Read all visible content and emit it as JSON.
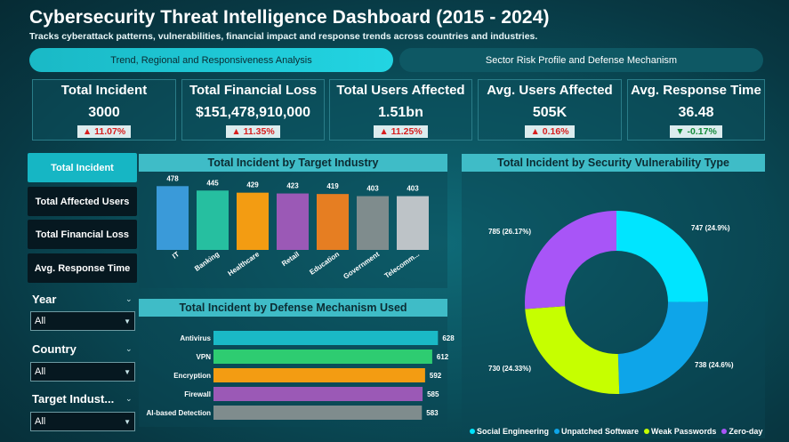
{
  "header": {
    "title": "Cybersecurity Threat Intelligence Dashboard (2015 - 2024)",
    "subtitle": "Tracks cyberattack patterns, vulnerabilities, financial impact and response trends across countries and industries."
  },
  "tabs": [
    {
      "label": "Trend, Regional and Responsiveness Analysis",
      "active": true
    },
    {
      "label": "Sector Risk Profile and Defense Mechanism",
      "active": false
    }
  ],
  "kpis": [
    {
      "label": "Total Incident",
      "value": "3000",
      "change": "▲ 11.07%",
      "direction": "up"
    },
    {
      "label": "Total Financial Loss",
      "value": "$151,478,910,000",
      "change": "▲ 11.35%",
      "direction": "up"
    },
    {
      "label": "Total Users Affected",
      "value": "1.51bn",
      "change": "▲ 11.25%",
      "direction": "up"
    },
    {
      "label": "Avg. Users Affected",
      "value": "505K",
      "change": "▲ 0.16%",
      "direction": "up"
    },
    {
      "label": "Avg. Response Time",
      "value": "36.48",
      "change": "▼ -0.17%",
      "direction": "down"
    }
  ],
  "sidebar": {
    "buttons": [
      {
        "label": "Total Incident",
        "active": true
      },
      {
        "label": "Total Affected Users",
        "active": false
      },
      {
        "label": "Total Financial Loss",
        "active": false
      },
      {
        "label": "Avg. Response Time",
        "active": false
      }
    ],
    "filters": [
      {
        "label": "Year",
        "value": "All"
      },
      {
        "label": "Country",
        "value": "All"
      },
      {
        "label": "Target Indust...",
        "value": "All"
      }
    ]
  },
  "chart_data": [
    {
      "type": "bar",
      "title": "Total Incident by Target Industry",
      "categories": [
        "IT",
        "Banking",
        "Healthcare",
        "Retail",
        "Education",
        "Government",
        "Telecomm..."
      ],
      "values": [
        478,
        445,
        429,
        423,
        419,
        403,
        403
      ],
      "colors": [
        "#3a9ad9",
        "#26bfa0",
        "#f39c12",
        "#9b59b6",
        "#e67e22",
        "#7f8c8d",
        "#bdc3c7"
      ],
      "ylim": [
        0,
        500
      ]
    },
    {
      "type": "bar",
      "orientation": "horizontal",
      "title": "Total Incident by Defense Mechanism Used",
      "categories": [
        "Antivirus",
        "VPN",
        "Encryption",
        "Firewall",
        "AI-based Detection"
      ],
      "values": [
        628,
        612,
        592,
        585,
        583
      ],
      "colors": [
        "#1ab9c6",
        "#2ecc71",
        "#f39c12",
        "#9b59b6",
        "#7f8c8d"
      ],
      "xlim": [
        0,
        660
      ]
    },
    {
      "type": "pie",
      "variant": "donut",
      "title": "Total Incident by Security Vulnerability Type",
      "categories": [
        "Social Engineering",
        "Unpatched Software",
        "Weak Passwords",
        "Zero-day"
      ],
      "values": [
        747,
        738,
        730,
        785
      ],
      "labels": [
        "747 (24.9%)",
        "738 (24.6%)",
        "730 (24.33%)",
        "785 (26.17%)"
      ],
      "colors": [
        "#00e5ff",
        "#0ea5e9",
        "#c6ff00",
        "#a855f7"
      ],
      "legend_position": "bottom"
    }
  ]
}
